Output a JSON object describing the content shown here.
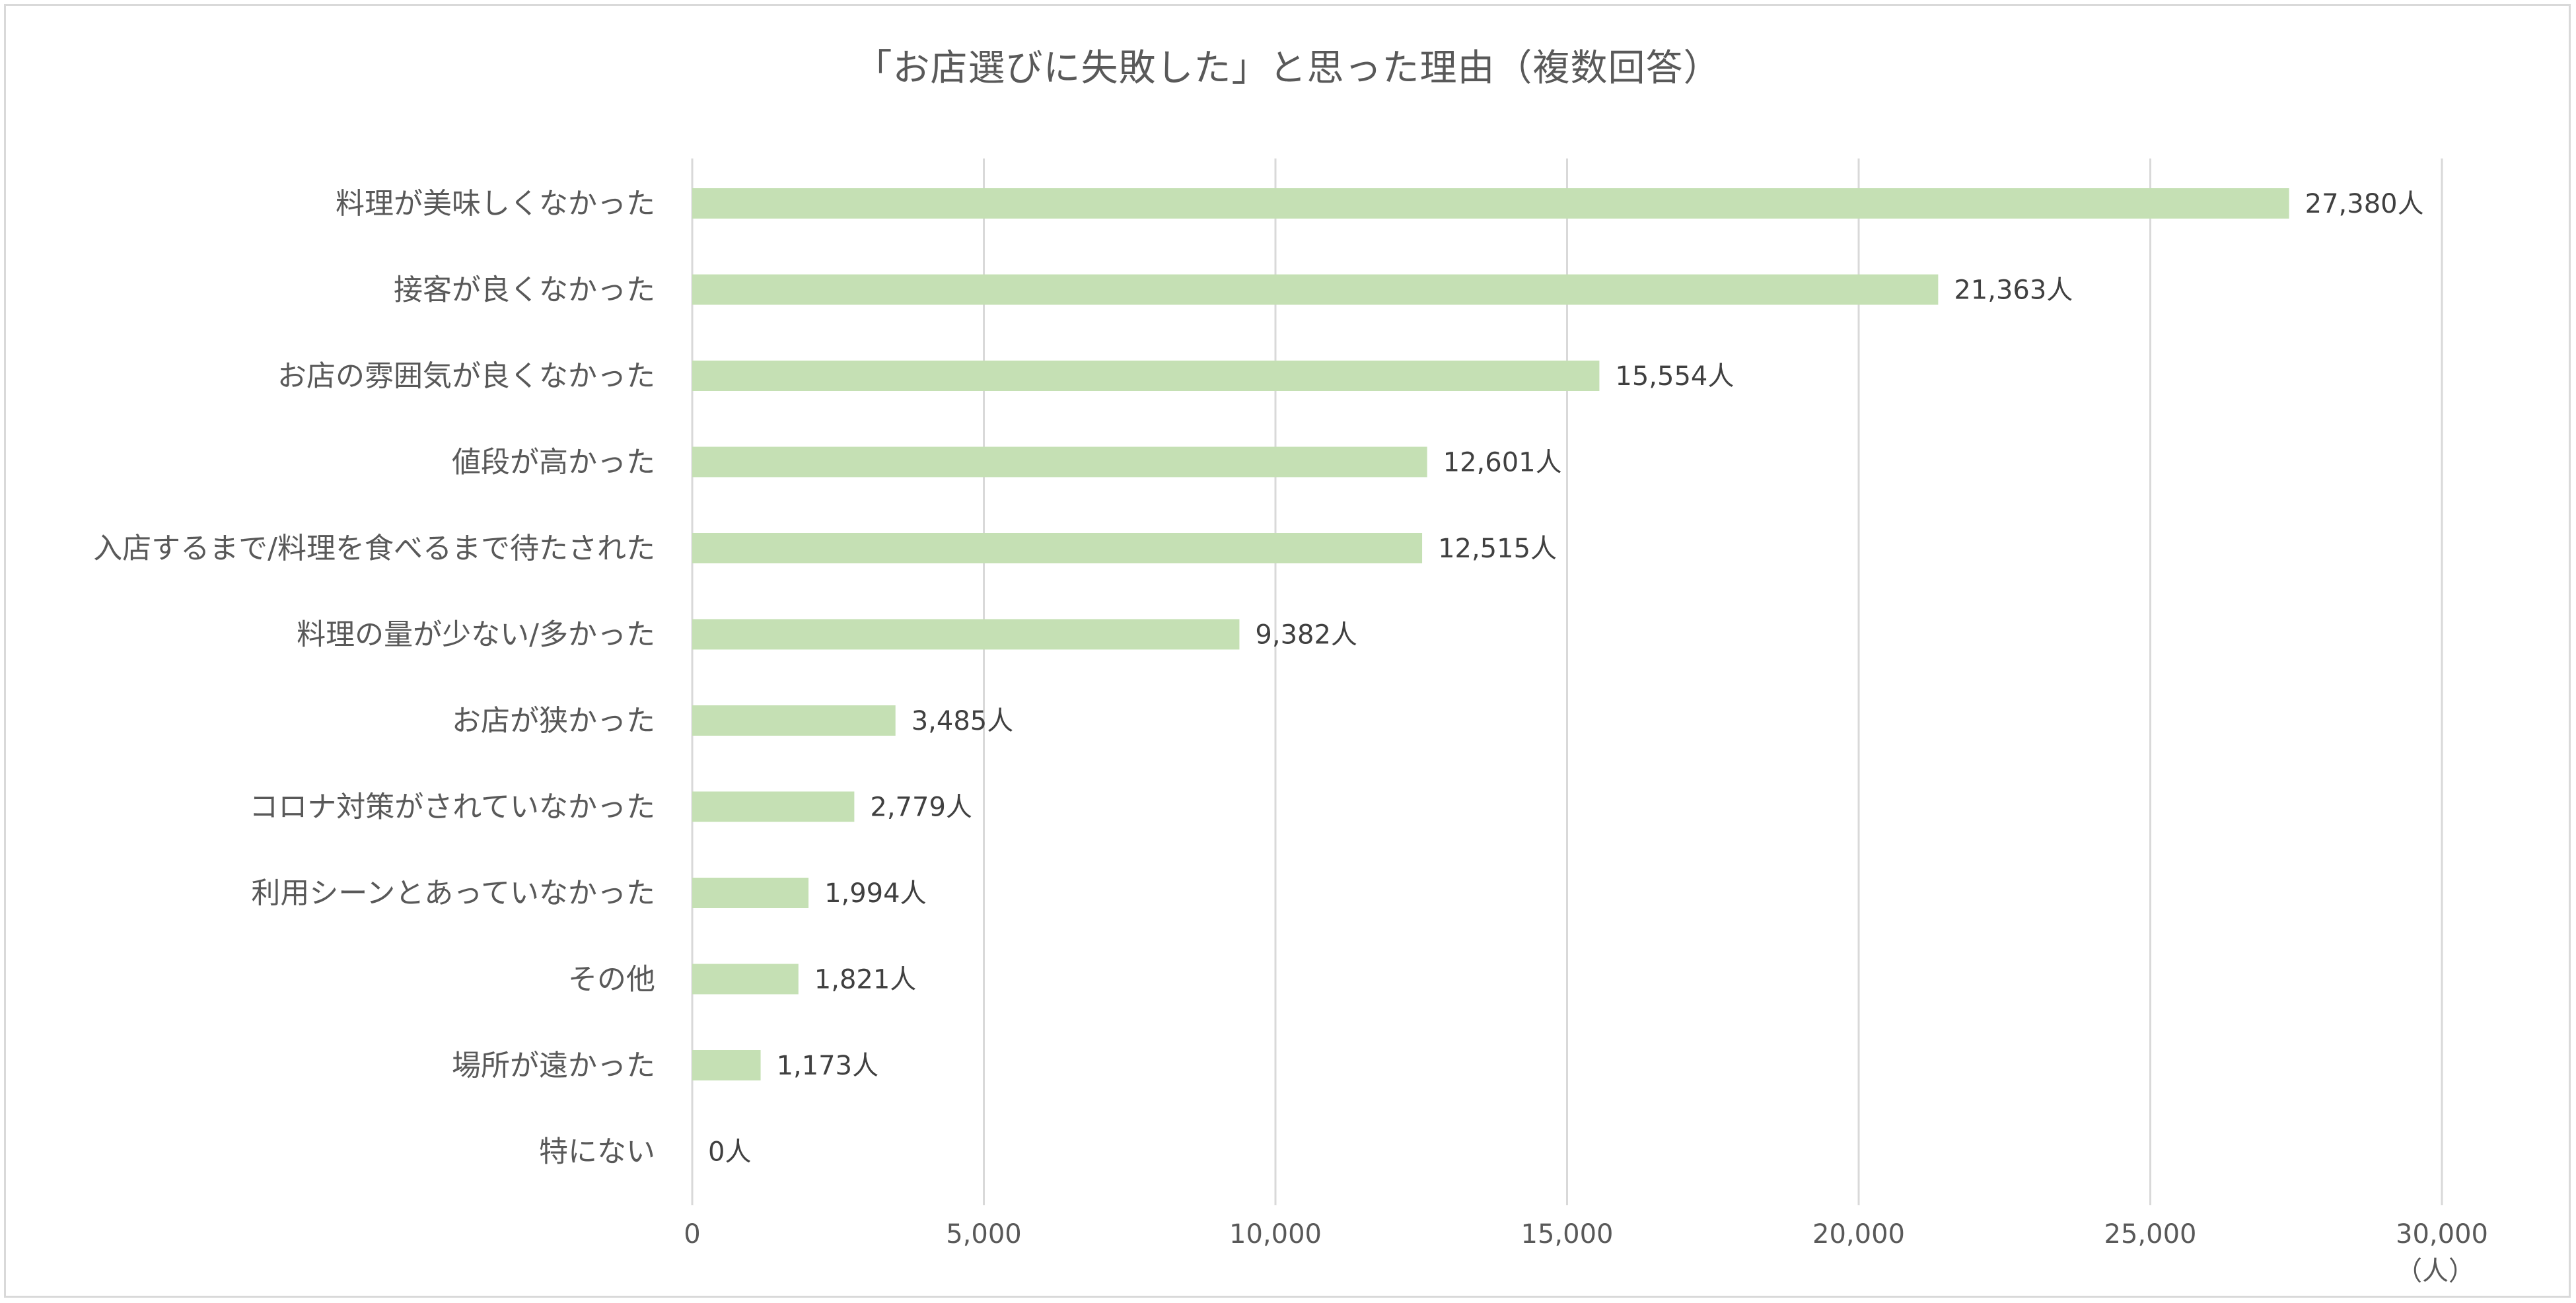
{
  "chart_data": {
    "type": "bar",
    "orientation": "horizontal",
    "title": "「お店選びに失敗した」と思った理由（複数回答）",
    "unit": "（人）",
    "value_suffix": "人",
    "xlim": [
      0,
      30000
    ],
    "x_ticks": [
      "0",
      "5,000",
      "10,000",
      "15,000",
      "20,000",
      "25,000",
      "30,000"
    ],
    "x_tick_values": [
      0,
      5000,
      10000,
      15000,
      20000,
      25000,
      30000
    ],
    "grid": true,
    "legend": "none",
    "bar_color": "#c5e0b4",
    "categories": [
      "料理が美味しくなかった",
      "接客が良くなかった",
      "お店の雰囲気が良くなかった",
      "値段が高かった",
      "入店するまで/料理を食べるまで待たされた",
      "料理の量が少ない/多かった",
      "お店が狭かった",
      "コロナ対策がされていなかった",
      "利用シーンとあっていなかった",
      "その他",
      "場所が遠かった",
      "特にない"
    ],
    "values": [
      27380,
      21363,
      15554,
      12601,
      12515,
      9382,
      3485,
      2779,
      1994,
      1821,
      1173,
      0
    ],
    "data_labels": [
      "27,380人",
      "21,363人",
      "15,554人",
      "12,601人",
      "12,515人",
      "9,382人",
      "3,485人",
      "2,779人",
      "1,994人",
      "1,821人",
      "1,173人",
      "0人"
    ]
  }
}
